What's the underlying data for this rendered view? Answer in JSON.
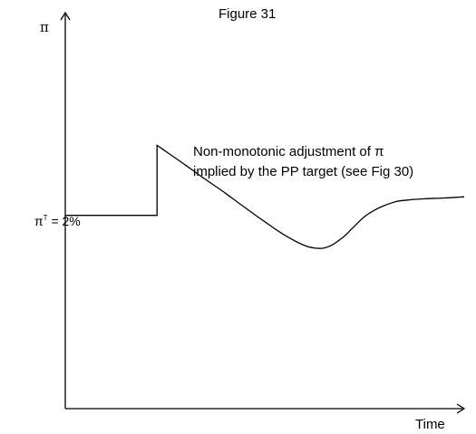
{
  "chart_data": {
    "type": "line",
    "title": "Figure 31",
    "ylabel": "π",
    "xlabel": "Time",
    "target_label": {
      "symbol": "π",
      "superscript": "T",
      "suffix": " = 2%"
    },
    "annotation": {
      "line1": "Non-monotonic adjustment of π",
      "line2": "implied by the PP target (see Fig 30)"
    },
    "xlim": [
      0,
      100
    ],
    "ylim": [
      0,
      100
    ],
    "grid": false,
    "series": [
      {
        "x": [
          0,
          23,
          23,
          26,
          30,
          35,
          40,
          45,
          50,
          55,
          60,
          63,
          65,
          67,
          70,
          72,
          75,
          78,
          80,
          83,
          86,
          90,
          95,
          100
        ],
        "y": [
          48.8,
          48.8,
          66.5,
          64.4,
          61.6,
          58,
          54.5,
          50.8,
          47.2,
          43.8,
          41.2,
          40.5,
          40.6,
          41.4,
          43.6,
          45.6,
          48.5,
          50.4,
          51.3,
          52.3,
          52.7,
          53.0,
          53.2,
          53.5
        ]
      }
    ],
    "colors": {
      "line": "#000000",
      "axis": "#000000"
    }
  }
}
